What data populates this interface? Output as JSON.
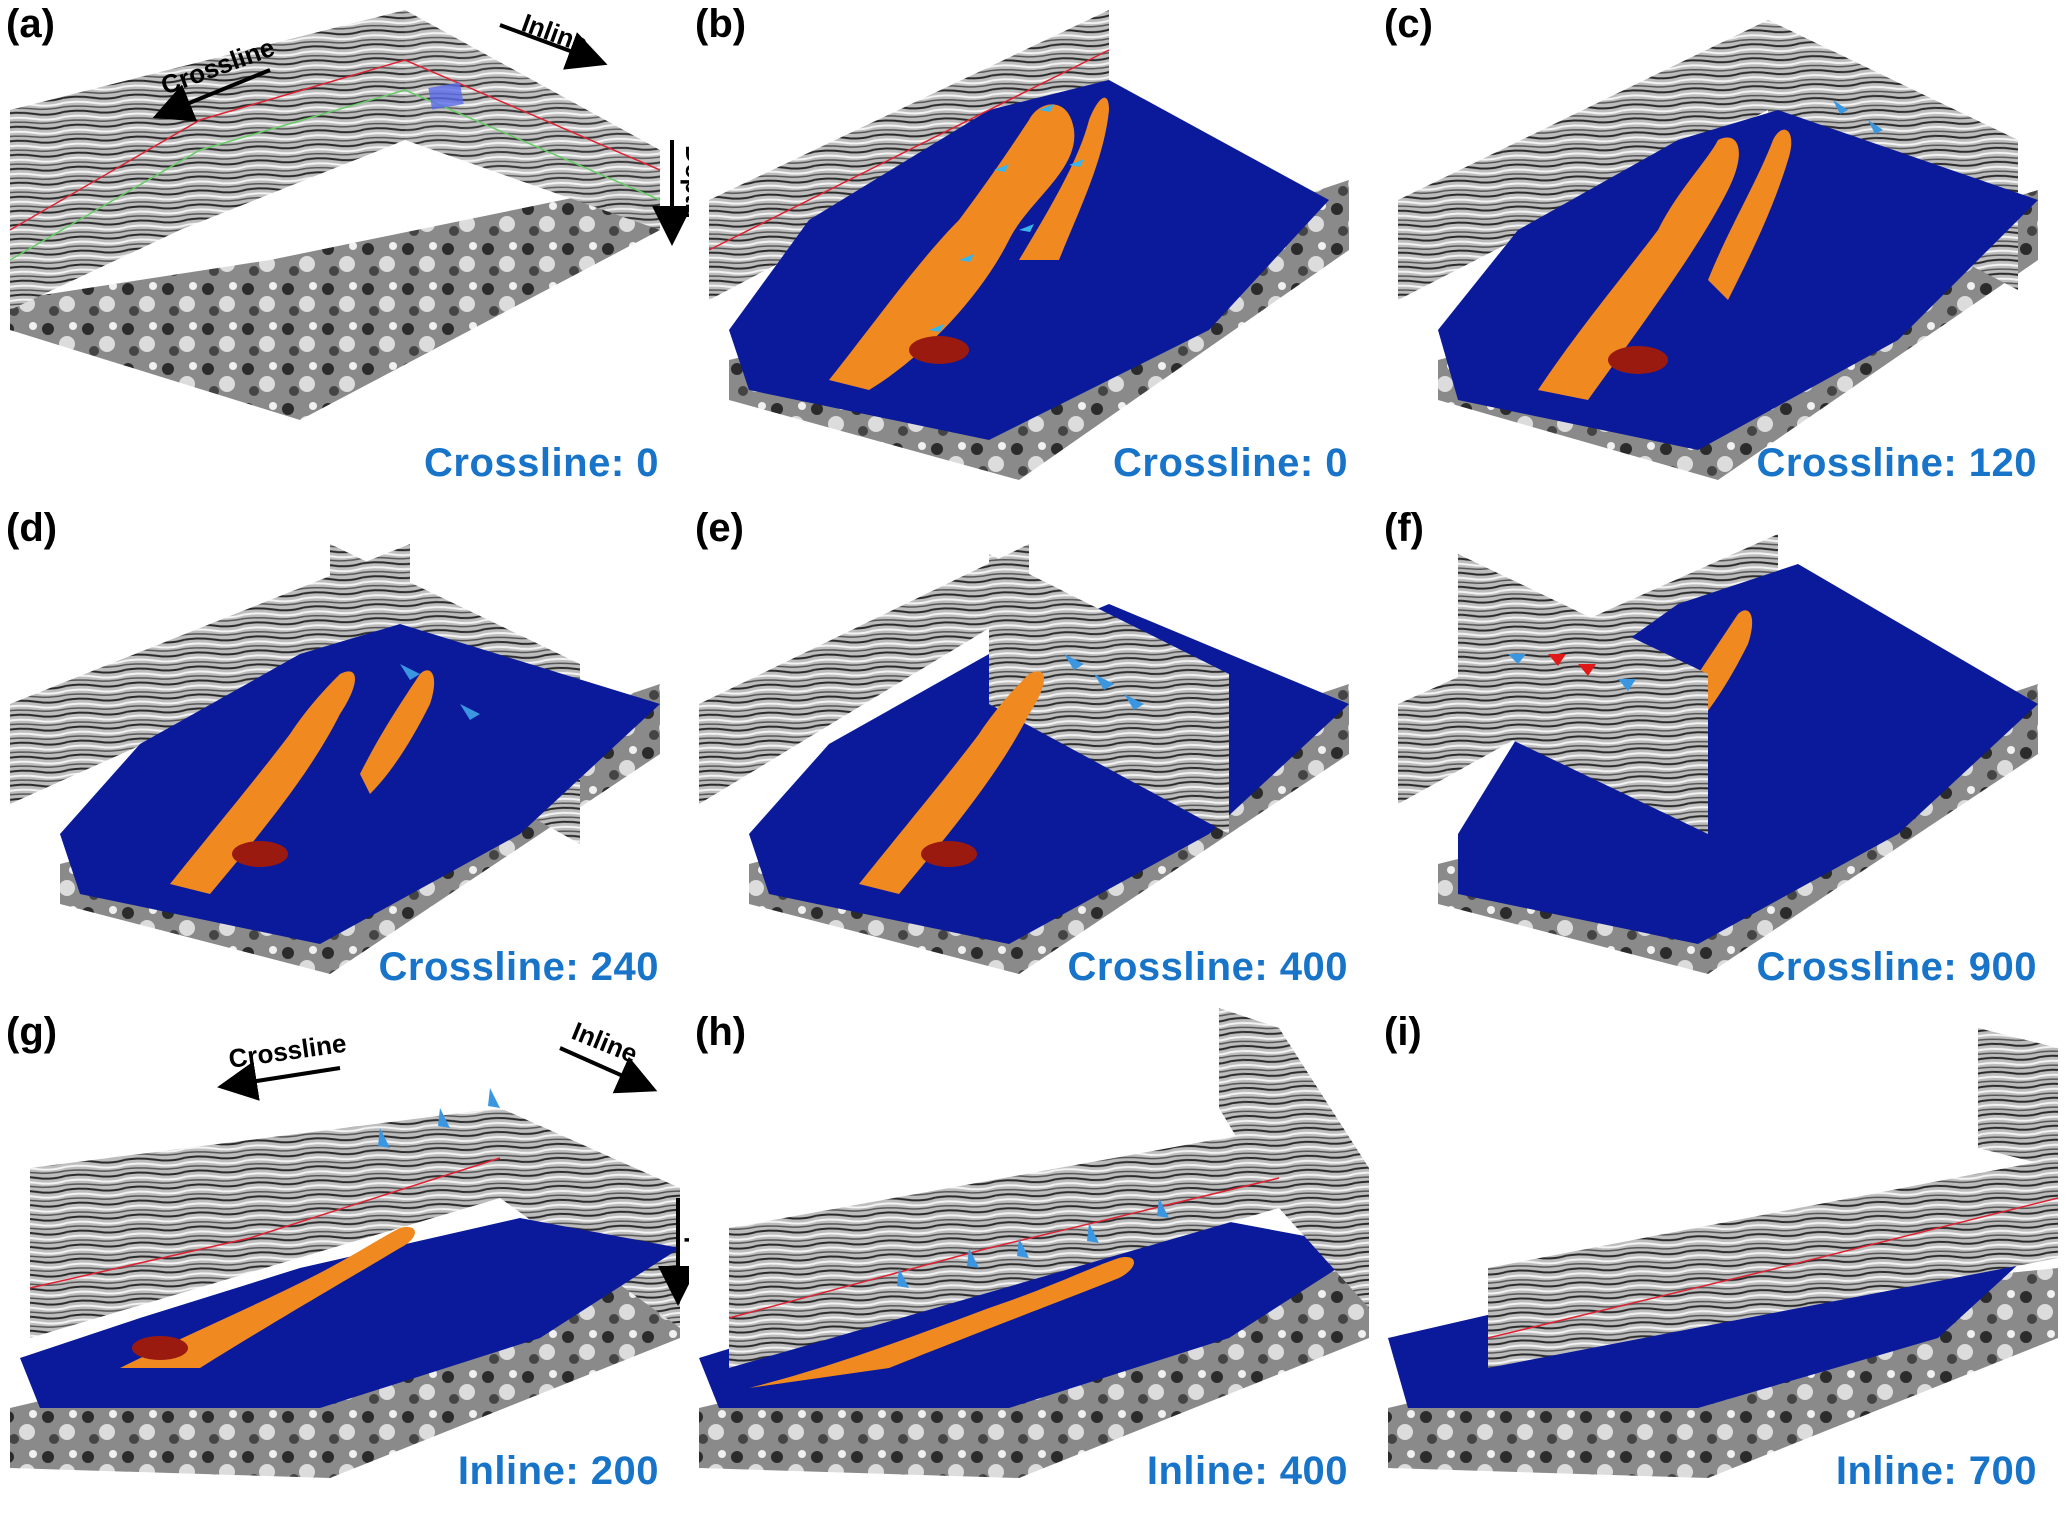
{
  "colors": {
    "horizon_blue": "#0a1a9a",
    "channel_orange": "#f08a20",
    "channel_red": "#9a1a10",
    "arrow_blue": "#3a96e0",
    "arrow_red": "#e01818",
    "label_blue": "#1874c8"
  },
  "axes": {
    "crossline": "Crossline",
    "inline": "Inline",
    "depth": "Depth"
  },
  "panels": [
    {
      "id": "a",
      "label": "(a)",
      "slice": "Crossline: 0"
    },
    {
      "id": "b",
      "label": "(b)",
      "slice": "Crossline: 0"
    },
    {
      "id": "c",
      "label": "(c)",
      "slice": "Crossline: 120"
    },
    {
      "id": "d",
      "label": "(d)",
      "slice": "Crossline: 240"
    },
    {
      "id": "e",
      "label": "(e)",
      "slice": "Crossline: 400"
    },
    {
      "id": "f",
      "label": "(f)",
      "slice": "Crossline: 900"
    },
    {
      "id": "g",
      "label": "(g)",
      "slice": "Inline: 200"
    },
    {
      "id": "h",
      "label": "(h)",
      "slice": "Inline: 400"
    },
    {
      "id": "i",
      "label": "(i)",
      "slice": "Inline: 700"
    }
  ]
}
